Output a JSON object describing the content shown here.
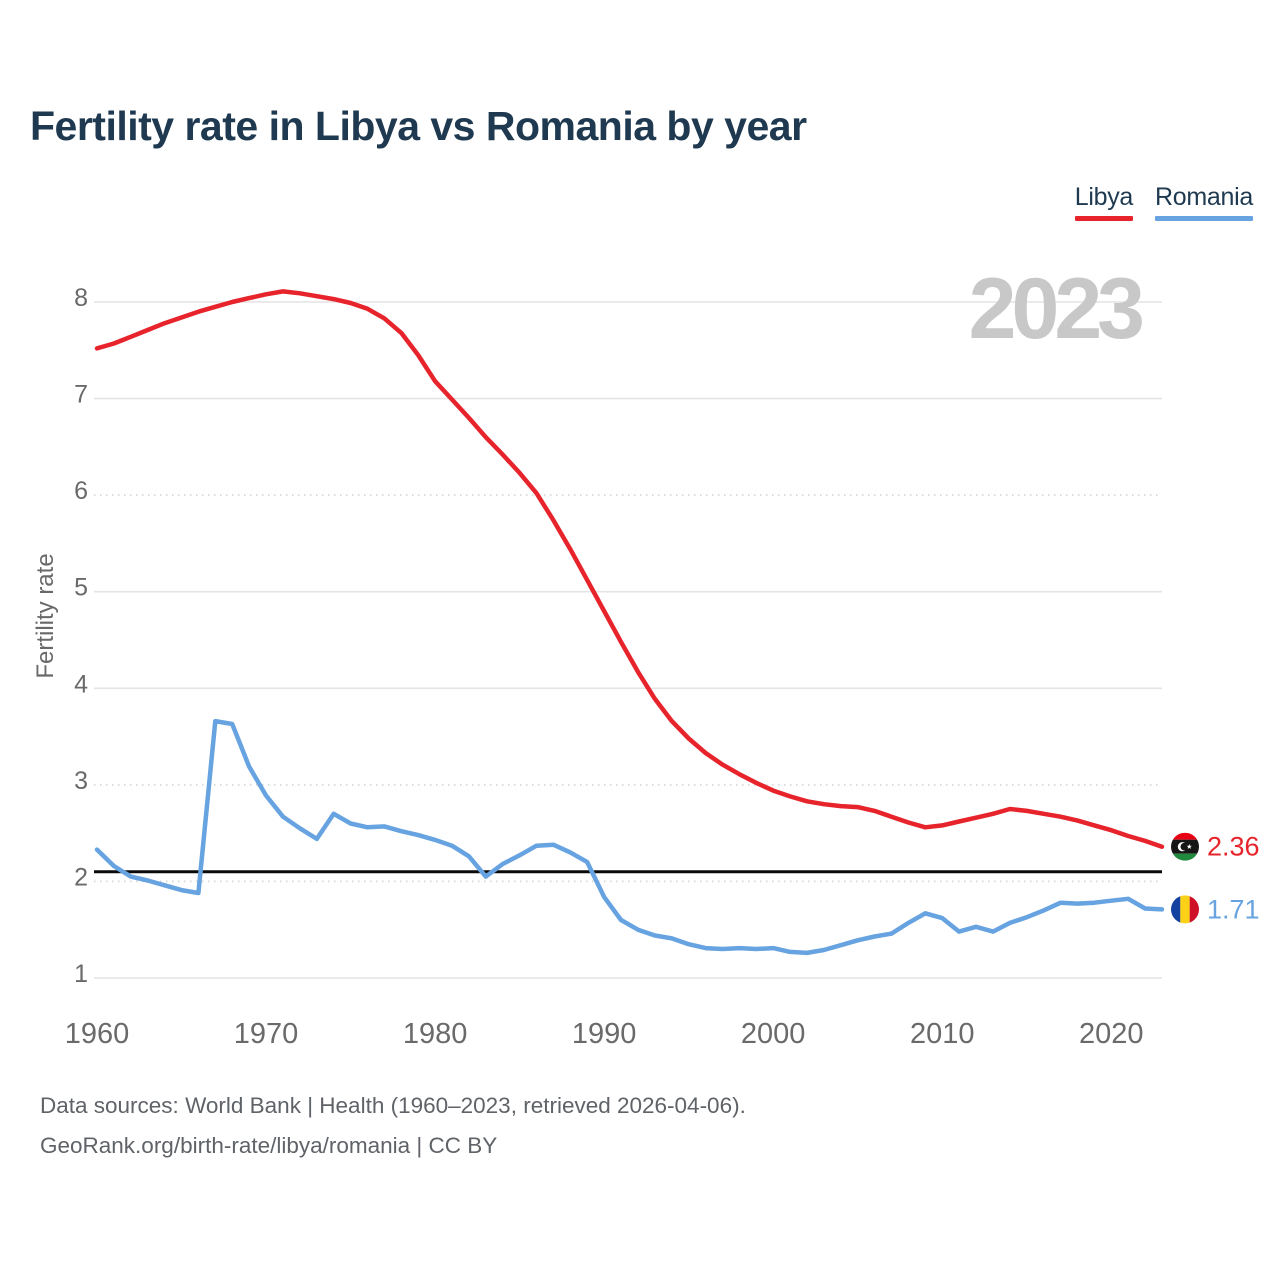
{
  "title": "Fertility rate in Libya vs Romania by year",
  "watermark": "2023",
  "y_axis_label": "Fertility rate",
  "legend": {
    "items": [
      {
        "label": "Libya",
        "color": "#e7242b"
      },
      {
        "label": "Romania",
        "color": "#66a3e0"
      }
    ]
  },
  "end_labels": {
    "libya_value": "2.36",
    "romania_value": "1.71"
  },
  "footer": {
    "line1": "Data sources: World Bank | Health (1960–2023, retrieved 2026-04-06).",
    "line2": "GeoRank.org/birth-rate/libya/romania | CC BY"
  },
  "chart_data": {
    "type": "line",
    "title": "Fertility rate in Libya vs Romania by year",
    "xlabel": "",
    "ylabel": "Fertility rate",
    "x_start": 1960,
    "x_end": 2023,
    "x_ticks": [
      1960,
      1970,
      1980,
      1990,
      2000,
      2010,
      2020
    ],
    "y_ticks": [
      1,
      2,
      3,
      4,
      5,
      6,
      7,
      8
    ],
    "ylim": [
      0.6,
      8.4
    ],
    "grid": true,
    "legend_position": "top-right",
    "reference_line": 2.1,
    "series": [
      {
        "name": "Libya",
        "color": "#e7242b",
        "values": [
          7.52,
          7.57,
          7.64,
          7.71,
          7.78,
          7.84,
          7.9,
          7.95,
          8.0,
          8.04,
          8.08,
          8.11,
          8.09,
          8.06,
          8.03,
          7.99,
          7.93,
          7.83,
          7.68,
          7.45,
          7.18,
          6.99,
          6.8,
          6.6,
          6.42,
          6.23,
          6.02,
          5.74,
          5.44,
          5.12,
          4.8,
          4.48,
          4.17,
          3.89,
          3.66,
          3.48,
          3.33,
          3.21,
          3.11,
          3.02,
          2.94,
          2.88,
          2.83,
          2.8,
          2.78,
          2.77,
          2.73,
          2.67,
          2.61,
          2.56,
          2.58,
          2.62,
          2.66,
          2.7,
          2.75,
          2.73,
          2.7,
          2.67,
          2.63,
          2.58,
          2.53,
          2.47,
          2.42,
          2.36
        ]
      },
      {
        "name": "Romania",
        "color": "#66a3e0",
        "values": [
          2.33,
          2.16,
          2.05,
          2.01,
          1.96,
          1.91,
          1.88,
          3.66,
          3.63,
          3.19,
          2.89,
          2.67,
          2.55,
          2.44,
          2.7,
          2.6,
          2.56,
          2.57,
          2.52,
          2.48,
          2.43,
          2.37,
          2.26,
          2.05,
          2.18,
          2.27,
          2.37,
          2.38,
          2.3,
          2.2,
          1.84,
          1.6,
          1.5,
          1.44,
          1.41,
          1.35,
          1.31,
          1.3,
          1.31,
          1.3,
          1.31,
          1.27,
          1.26,
          1.29,
          1.34,
          1.39,
          1.43,
          1.46,
          1.57,
          1.67,
          1.62,
          1.48,
          1.53,
          1.48,
          1.57,
          1.63,
          1.7,
          1.78,
          1.77,
          1.78,
          1.8,
          1.82,
          1.72,
          1.71
        ]
      }
    ]
  }
}
